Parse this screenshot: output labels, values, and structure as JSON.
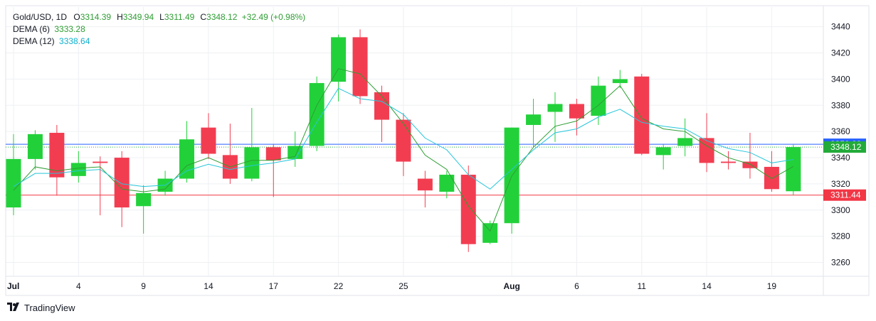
{
  "legend": {
    "symbol": "Gold/USD, 1D",
    "ohlc": [
      {
        "k": "O",
        "v": "3314.39"
      },
      {
        "k": "H",
        "v": "3349.94"
      },
      {
        "k": "L",
        "v": "3311.49"
      },
      {
        "k": "C",
        "v": "3348.12"
      }
    ],
    "change": "+32.49 (+0.98%)",
    "dema6_label": "DEMA (6)",
    "dema6_value": "3333.28",
    "dema12_label": "DEMA (12)",
    "dema12_value": "3338.64"
  },
  "brand": "TradingView",
  "colors": {
    "up": "#22d13a",
    "down": "#f23d51",
    "dema6": "#2e9e33",
    "dema12": "#26c6da",
    "grid": "#eef0f3",
    "blue_line": "#2962ff",
    "red_line": "#f23645",
    "text": "#131722",
    "legend_green": "#2e9e33",
    "legend_cyan": "#0fb0cc"
  },
  "chart_data": {
    "type": "candlestick",
    "ylim": [
      3250,
      3455
    ],
    "y_ticks": [
      3260,
      3280,
      3300,
      3320,
      3340,
      3360,
      3380,
      3400,
      3420,
      3440
    ],
    "x_tick_labels": [
      {
        "i": 0,
        "label": "Jul"
      },
      {
        "i": 3,
        "label": "4"
      },
      {
        "i": 6,
        "label": "9"
      },
      {
        "i": 9,
        "label": "14"
      },
      {
        "i": 12,
        "label": "17"
      },
      {
        "i": 15,
        "label": "22"
      },
      {
        "i": 18,
        "label": "25"
      },
      {
        "i": 23,
        "label": "Aug"
      },
      {
        "i": 26,
        "label": "6"
      },
      {
        "i": 29,
        "label": "11"
      },
      {
        "i": 32,
        "label": "14"
      },
      {
        "i": 35,
        "label": "19"
      }
    ],
    "candles": [
      {
        "o": 3302,
        "h": 3358,
        "l": 3296,
        "c": 3339
      },
      {
        "o": 3339,
        "h": 3361,
        "l": 3331,
        "c": 3358
      },
      {
        "o": 3359,
        "h": 3365,
        "l": 3311,
        "c": 3325
      },
      {
        "o": 3326,
        "h": 3345,
        "l": 3321,
        "c": 3336
      },
      {
        "o": 3337,
        "h": 3341,
        "l": 3296,
        "c": 3336
      },
      {
        "o": 3340,
        "h": 3345,
        "l": 3287,
        "c": 3302
      },
      {
        "o": 3303,
        "h": 3319,
        "l": 3282,
        "c": 3313
      },
      {
        "o": 3314,
        "h": 3330,
        "l": 3311,
        "c": 3324
      },
      {
        "o": 3324,
        "h": 3368,
        "l": 3321,
        "c": 3354
      },
      {
        "o": 3363,
        "h": 3374,
        "l": 3339,
        "c": 3343
      },
      {
        "o": 3342,
        "h": 3366,
        "l": 3320,
        "c": 3324
      },
      {
        "o": 3324,
        "h": 3378,
        "l": 3322,
        "c": 3348
      },
      {
        "o": 3348,
        "h": 3350,
        "l": 3310,
        "c": 3338
      },
      {
        "o": 3339,
        "h": 3360,
        "l": 3333,
        "c": 3349
      },
      {
        "o": 3349,
        "h": 3402,
        "l": 3345,
        "c": 3397
      },
      {
        "o": 3398,
        "h": 3434,
        "l": 3383,
        "c": 3432
      },
      {
        "o": 3432,
        "h": 3438,
        "l": 3381,
        "c": 3387
      },
      {
        "o": 3390,
        "h": 3395,
        "l": 3352,
        "c": 3369
      },
      {
        "o": 3369,
        "h": 3374,
        "l": 3326,
        "c": 3337
      },
      {
        "o": 3324,
        "h": 3330,
        "l": 3302,
        "c": 3315
      },
      {
        "o": 3314,
        "h": 3330,
        "l": 3309,
        "c": 3327
      },
      {
        "o": 3327,
        "h": 3334,
        "l": 3268,
        "c": 3274
      },
      {
        "o": 3275,
        "h": 3292,
        "l": 3274,
        "c": 3290
      },
      {
        "o": 3290,
        "h": 3363,
        "l": 3282,
        "c": 3363
      },
      {
        "o": 3365,
        "h": 3385,
        "l": 3348,
        "c": 3373
      },
      {
        "o": 3375,
        "h": 3390,
        "l": 3352,
        "c": 3381
      },
      {
        "o": 3381,
        "h": 3385,
        "l": 3357,
        "c": 3370
      },
      {
        "o": 3372,
        "h": 3402,
        "l": 3365,
        "c": 3395
      },
      {
        "o": 3397,
        "h": 3407,
        "l": 3393,
        "c": 3400
      },
      {
        "o": 3402,
        "h": 3404,
        "l": 3342,
        "c": 3343
      },
      {
        "o": 3342,
        "h": 3350,
        "l": 3331,
        "c": 3348
      },
      {
        "o": 3349,
        "h": 3370,
        "l": 3341,
        "c": 3355
      },
      {
        "o": 3355,
        "h": 3374,
        "l": 3329,
        "c": 3336
      },
      {
        "o": 3337,
        "h": 3345,
        "l": 3331,
        "c": 3336
      },
      {
        "o": 3337,
        "h": 3359,
        "l": 3324,
        "c": 3332
      },
      {
        "o": 3333,
        "h": 3345,
        "l": 3314,
        "c": 3316
      },
      {
        "o": 3314.39,
        "h": 3349.94,
        "l": 3311.49,
        "c": 3348.12
      }
    ],
    "series": [
      {
        "name": "DEMA (6)",
        "color": "#2e9e33",
        "values": [
          3315,
          3333,
          3330,
          3332,
          3333,
          3316,
          3314,
          3316,
          3334,
          3340,
          3333,
          3338,
          3338,
          3341,
          3380,
          3408,
          3404,
          3387,
          3366,
          3342,
          3331,
          3303,
          3284,
          3326,
          3348,
          3364,
          3368,
          3380,
          3395,
          3370,
          3362,
          3360,
          3349,
          3340,
          3335,
          3324,
          3333.28
        ]
      },
      {
        "name": "DEMA (12)",
        "color": "#26c6da",
        "values": [
          3318,
          3328,
          3328,
          3330,
          3331,
          3320,
          3318,
          3319,
          3330,
          3335,
          3331,
          3334,
          3336,
          3339,
          3367,
          3393,
          3385,
          3383,
          3373,
          3355,
          3346,
          3327,
          3316,
          3331,
          3346,
          3359,
          3362,
          3371,
          3377,
          3367,
          3364,
          3362,
          3353,
          3347,
          3344,
          3336,
          3338.64
        ]
      }
    ],
    "price_lines": [
      {
        "value": 3350.29,
        "label": "3350.29",
        "color": "#2962ff",
        "kind": "solid"
      },
      {
        "value": 3348.12,
        "label": "3348.12",
        "color": "#22ab3a",
        "kind": "dotted"
      },
      {
        "value": 3311.44,
        "label": "3311.44",
        "color": "#f23645",
        "kind": "solid"
      }
    ]
  }
}
